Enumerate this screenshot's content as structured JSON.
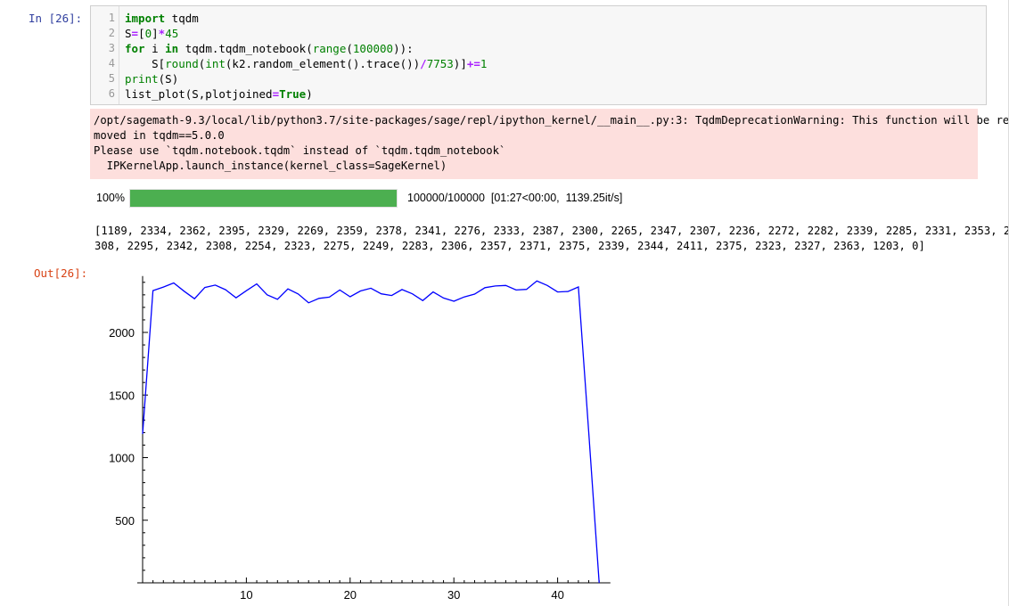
{
  "in_prompt": "In  [26]:",
  "out_prompt": "Out[26]:",
  "code": {
    "line_numbers": [
      "1",
      "2",
      "3",
      "4",
      "5",
      "6"
    ]
  },
  "stderr": {
    "lines": [
      "/opt/sagemath-9.3/local/lib/python3.7/site-packages/sage/repl/ipython_kernel/__main__.py:3: TqdmDeprecationWarning: This function will be re",
      "moved in tqdm==5.0.0",
      "Please use `tqdm.notebook.tqdm` instead of `tqdm.tqdm_notebook`",
      "  IPKernelApp.launch_instance(kernel_class=SageKernel)"
    ]
  },
  "progress": {
    "percent_label": "100%",
    "fraction": 1.0,
    "stats": "100000/100000  [01:27<00:00,  1139.25it/s]",
    "color": "#4caf50"
  },
  "stdout": {
    "lines": [
      "[1189, 2334, 2362, 2395, 2329, 2269, 2359, 2378, 2341, 2276, 2333, 2387, 2300, 2265, 2347, 2307, 2236, 2272, 2282, 2339, 2285, 2331, 2353, 2",
      "308, 2295, 2342, 2308, 2254, 2323, 2275, 2249, 2283, 2306, 2357, 2371, 2375, 2339, 2344, 2411, 2375, 2323, 2327, 2363, 1203, 0]"
    ]
  },
  "chart_data": {
    "type": "line",
    "x": [
      0,
      1,
      2,
      3,
      4,
      5,
      6,
      7,
      8,
      9,
      10,
      11,
      12,
      13,
      14,
      15,
      16,
      17,
      18,
      19,
      20,
      21,
      22,
      23,
      24,
      25,
      26,
      27,
      28,
      29,
      30,
      31,
      32,
      33,
      34,
      35,
      36,
      37,
      38,
      39,
      40,
      41,
      42,
      43,
      44
    ],
    "values": [
      1189,
      2334,
      2362,
      2395,
      2329,
      2269,
      2359,
      2378,
      2341,
      2276,
      2333,
      2387,
      2300,
      2265,
      2347,
      2307,
      2236,
      2272,
      2282,
      2339,
      2285,
      2331,
      2353,
      2308,
      2295,
      2342,
      2308,
      2254,
      2323,
      2275,
      2249,
      2283,
      2306,
      2357,
      2371,
      2375,
      2339,
      2344,
      2411,
      2375,
      2323,
      2327,
      2363,
      1203,
      0
    ],
    "xlim": [
      0,
      45
    ],
    "ylim": [
      0,
      2450
    ],
    "xticks": [
      10,
      20,
      30,
      40
    ],
    "yticks": [
      500,
      1000,
      1500,
      2000
    ],
    "line_color": "#0000ff",
    "title": "",
    "xlabel": "",
    "ylabel": ""
  }
}
